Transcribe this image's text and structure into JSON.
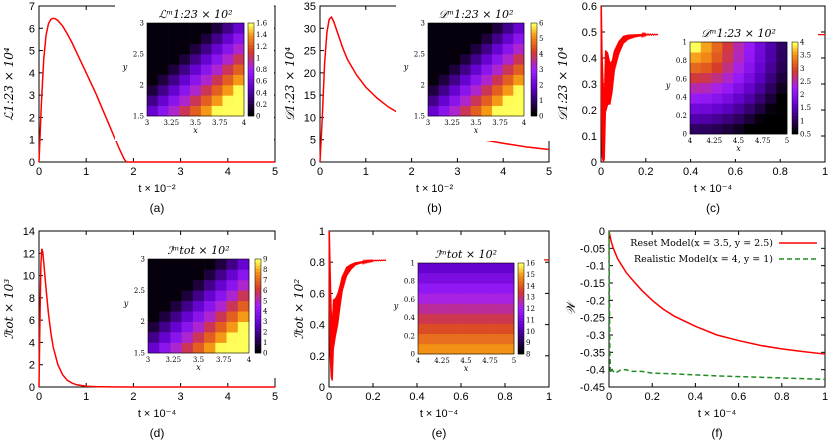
{
  "chart_data": [
    {
      "id": "a",
      "type": "line",
      "caption": "(a)",
      "ylabel": "ℒ1:23 × 10⁴",
      "xlabel": "t × 10⁻²",
      "xlim": [
        0,
        5
      ],
      "ylim": [
        0,
        7
      ],
      "xticks": [
        "0",
        "1",
        "2",
        "3",
        "4",
        "5"
      ],
      "yticks": [
        "0",
        "1",
        "2",
        "3",
        "4",
        "5",
        "6",
        "7"
      ],
      "series": [
        {
          "color": "#ff0000",
          "x": [
            0,
            0.05,
            0.1,
            0.15,
            0.2,
            0.25,
            0.3,
            0.35,
            0.4,
            0.5,
            0.6,
            0.7,
            0.8,
            0.9,
            1.0,
            1.1,
            1.2,
            1.3,
            1.4,
            1.5,
            1.6,
            1.7,
            1.8,
            1.85,
            1.9,
            2.0,
            3.0,
            4.0,
            5.0
          ],
          "y": [
            0,
            2.6,
            4.6,
            5.7,
            6.2,
            6.4,
            6.45,
            6.42,
            6.35,
            6.1,
            5.75,
            5.35,
            4.9,
            4.45,
            4.0,
            3.55,
            3.1,
            2.6,
            2.1,
            1.6,
            1.1,
            0.6,
            0.15,
            0,
            0,
            0,
            0,
            0,
            0
          ]
        }
      ],
      "inset": {
        "title": "ℒᵐ1:23 × 10²",
        "xlabel": "x",
        "ylabel": "y",
        "xticks": [
          "3",
          "3.25",
          "3.5",
          "3.75",
          "4"
        ],
        "yticks": [
          "1.5",
          "2",
          "2.5",
          "3"
        ],
        "colorbar_ticks": [
          "0",
          "0.2",
          "0.4",
          "0.6",
          "0.8",
          "1",
          "1.2",
          "1.4",
          "1.6"
        ],
        "zlim": [
          0,
          1.6
        ],
        "mode": "diag"
      }
    },
    {
      "id": "b",
      "type": "line",
      "caption": "(b)",
      "ylabel": "𝒟1:23 × 10⁴",
      "xlabel": "t × 10⁻²",
      "xlim": [
        0,
        5
      ],
      "ylim": [
        0,
        35
      ],
      "xticks": [
        "0",
        "1",
        "2",
        "3",
        "4",
        "5"
      ],
      "yticks": [
        "0",
        "5",
        "10",
        "15",
        "20",
        "25",
        "30",
        "35"
      ],
      "series": [
        {
          "color": "#ff0000",
          "x": [
            0,
            0.05,
            0.1,
            0.15,
            0.2,
            0.25,
            0.3,
            0.4,
            0.5,
            0.6,
            0.8,
            1.0,
            1.25,
            1.5,
            1.75,
            2.0,
            2.5,
            3.0,
            3.5,
            4.0,
            4.5,
            5.0
          ],
          "y": [
            0,
            10,
            22,
            29,
            32,
            32.5,
            31.5,
            28.5,
            25.5,
            23,
            19.5,
            16.8,
            14.3,
            12.3,
            10.8,
            9.5,
            7.6,
            6.2,
            5.1,
            4.2,
            3.4,
            2.8
          ]
        }
      ],
      "inset": {
        "title": "𝒟ᵐ1:23 × 10²",
        "xlabel": "x",
        "ylabel": "y",
        "xticks": [
          "3",
          "3.25",
          "3.5",
          "3.75",
          "4"
        ],
        "yticks": [
          "1.5",
          "2",
          "2.5",
          "3"
        ],
        "colorbar_ticks": [
          "0",
          "1",
          "2",
          "3",
          "4",
          "5",
          "6"
        ],
        "zlim": [
          0,
          6
        ],
        "mode": "diag"
      }
    },
    {
      "id": "c",
      "type": "line",
      "caption": "(c)",
      "ylabel": "𝒟1:23 × 10⁴",
      "xlabel": "t × 10⁻⁴",
      "xlim": [
        0,
        1
      ],
      "ylim": [
        0,
        0.6
      ],
      "xticks": [
        "0",
        "0.2",
        "0.4",
        "0.6",
        "0.8",
        "1"
      ],
      "yticks": [
        "0",
        "0.1",
        "0.2",
        "0.3",
        "0.4",
        "0.5",
        "0.6"
      ],
      "series": [
        {
          "color": "#ff0000",
          "oscillate": true,
          "x": [
            0,
            0.002,
            0.005,
            0.01,
            0.015,
            0.02,
            0.03,
            0.04,
            0.05,
            0.06,
            0.08,
            0.1,
            0.12,
            0.15,
            0.2,
            0.3,
            0.4,
            0.6,
            0.8,
            1.0
          ],
          "y": [
            0.58,
            0.4,
            0.22,
            0.15,
            0.13,
            0.31,
            0.32,
            0.3,
            0.33,
            0.39,
            0.44,
            0.47,
            0.48,
            0.485,
            0.49,
            0.49,
            0.49,
            0.49,
            0.49,
            0.49
          ],
          "amp": [
            0.0,
            0.2,
            0.2,
            0.15,
            0.12,
            0.12,
            0.1,
            0.08,
            0.06,
            0.04,
            0.025,
            0.015,
            0.01,
            0.006,
            0.003,
            0,
            0,
            0,
            0,
            0
          ]
        }
      ],
      "inset": {
        "title": "𝒟ᵐ1:23 × 10²",
        "xlabel": "x",
        "ylabel": "y",
        "xticks": [
          "4",
          "4.25",
          "4.5",
          "4.75",
          "5"
        ],
        "yticks": [
          "0",
          "0.2",
          "0.4",
          "0.6",
          "0.8",
          "1"
        ],
        "colorbar_ticks": [
          "0.5",
          "1",
          "1.5",
          "2",
          "2.5",
          "3",
          "3.5",
          "4"
        ],
        "zlim": [
          0.5,
          4
        ],
        "mode": "arc"
      }
    },
    {
      "id": "d",
      "type": "line",
      "caption": "(d)",
      "ylabel": "ℐtot × 10³",
      "xlabel": "t × 10⁻⁴",
      "xlim": [
        0,
        5
      ],
      "ylim": [
        0,
        14
      ],
      "xticks": [
        "0",
        "1",
        "2",
        "3",
        "4",
        "5"
      ],
      "yticks": [
        "0",
        "2",
        "4",
        "6",
        "8",
        "10",
        "12",
        "14"
      ],
      "series": [
        {
          "color": "#ff0000",
          "x": [
            0,
            0.02,
            0.04,
            0.06,
            0.08,
            0.1,
            0.15,
            0.2,
            0.25,
            0.3,
            0.4,
            0.5,
            0.6,
            0.7,
            0.8,
            1.0,
            1.2,
            1.5,
            2.0,
            3.0,
            4.0,
            5.0
          ],
          "y": [
            0,
            6,
            11,
            12.4,
            12.1,
            11.2,
            8.8,
            6.6,
            4.9,
            3.6,
            2.0,
            1.1,
            0.6,
            0.35,
            0.2,
            0.07,
            0.03,
            0.01,
            0,
            0,
            0,
            0
          ]
        }
      ],
      "inset": {
        "title": "ℐᵐtot × 10²",
        "xlabel": "x",
        "ylabel": "y",
        "xticks": [
          "3",
          "3.25",
          "3.5",
          "3.75",
          "4"
        ],
        "yticks": [
          "1.5",
          "2",
          "2.5",
          "3"
        ],
        "colorbar_ticks": [
          "0",
          "1",
          "2",
          "3",
          "4",
          "5",
          "6",
          "7",
          "8",
          "9"
        ],
        "zlim": [
          0,
          9
        ],
        "mode": "diag"
      }
    },
    {
      "id": "e",
      "type": "line",
      "caption": "(e)",
      "ylabel": "ℐtot × 10²",
      "xlabel": "t × 10⁻⁴",
      "xlim": [
        0,
        1
      ],
      "ylim": [
        0,
        1
      ],
      "xticks": [
        "0",
        "0.2",
        "0.4",
        "0.6",
        "0.8",
        "1"
      ],
      "yticks": [
        "0",
        "0.2",
        "0.4",
        "0.6",
        "0.8",
        "1"
      ],
      "series": [
        {
          "color": "#ff0000",
          "oscillate": true,
          "x": [
            0,
            0.002,
            0.005,
            0.01,
            0.015,
            0.02,
            0.03,
            0.04,
            0.05,
            0.06,
            0.08,
            0.1,
            0.12,
            0.15,
            0.2,
            0.3,
            0.4,
            0.6,
            0.8,
            1.0
          ],
          "y": [
            1.0,
            0.75,
            0.5,
            0.28,
            0.22,
            0.4,
            0.45,
            0.5,
            0.58,
            0.66,
            0.74,
            0.77,
            0.79,
            0.8,
            0.81,
            0.815,
            0.815,
            0.815,
            0.815,
            0.815
          ],
          "amp": [
            0,
            0.25,
            0.3,
            0.22,
            0.18,
            0.16,
            0.12,
            0.1,
            0.07,
            0.05,
            0.03,
            0.018,
            0.01,
            0.006,
            0.003,
            0,
            0,
            0,
            0,
            0
          ]
        }
      ],
      "inset": {
        "title": "ℐᵐtot × 10²",
        "xlabel": "x",
        "ylabel": "y",
        "xticks": [
          "4",
          "4.25",
          "4.5",
          "4.75",
          "5"
        ],
        "yticks": [
          "0",
          "0.2",
          "0.4",
          "0.6",
          "0.8",
          "1"
        ],
        "colorbar_ticks": [
          "8",
          "9",
          "10",
          "11",
          "12",
          "13",
          "14",
          "15",
          "16"
        ],
        "zlim": [
          8,
          16
        ],
        "mode": "bands"
      }
    },
    {
      "id": "f",
      "type": "line",
      "caption": "(f)",
      "ylabel": "𝒲",
      "xlabel": "t × 10⁻⁴",
      "xlim": [
        0,
        1
      ],
      "ylim": [
        -0.45,
        0
      ],
      "xticks": [
        "0",
        "0.2",
        "0.4",
        "0.6",
        "0.8",
        "1"
      ],
      "yticks": [
        "0",
        "-0.05",
        "-0.1",
        "-0.15",
        "-0.2",
        "-0.25",
        "-0.3",
        "-0.35",
        "-0.4",
        "-0.45"
      ],
      "legend_position": "top-right",
      "series": [
        {
          "name": "Reset Model(x = 3.5, y = 2.5)",
          "color": "#ff0000",
          "dash": false,
          "x": [
            0,
            0.01,
            0.02,
            0.04,
            0.06,
            0.08,
            0.1,
            0.15,
            0.2,
            0.25,
            0.3,
            0.4,
            0.5,
            0.6,
            0.7,
            0.8,
            0.9,
            1.0
          ],
          "y": [
            0,
            -0.03,
            -0.05,
            -0.08,
            -0.1,
            -0.12,
            -0.135,
            -0.17,
            -0.2,
            -0.225,
            -0.245,
            -0.275,
            -0.3,
            -0.316,
            -0.33,
            -0.34,
            -0.348,
            -0.355
          ]
        },
        {
          "name": "Realistic Model(x = 4, y = 1)",
          "color": "#228b22",
          "dash": true,
          "x": [
            0,
            0.002,
            0.004,
            0.006,
            0.008,
            0.01,
            0.015,
            0.02,
            0.03,
            0.05,
            0.08,
            0.1,
            0.15,
            0.2,
            0.3,
            0.4,
            0.5,
            0.6,
            0.7,
            0.8,
            0.9,
            1.0
          ],
          "y": [
            0,
            -0.2,
            -0.35,
            -0.4,
            -0.41,
            -0.405,
            -0.4,
            -0.405,
            -0.41,
            -0.402,
            -0.4,
            -0.405,
            -0.405,
            -0.41,
            -0.412,
            -0.415,
            -0.418,
            -0.42,
            -0.422,
            -0.424,
            -0.426,
            -0.428
          ]
        }
      ]
    }
  ]
}
